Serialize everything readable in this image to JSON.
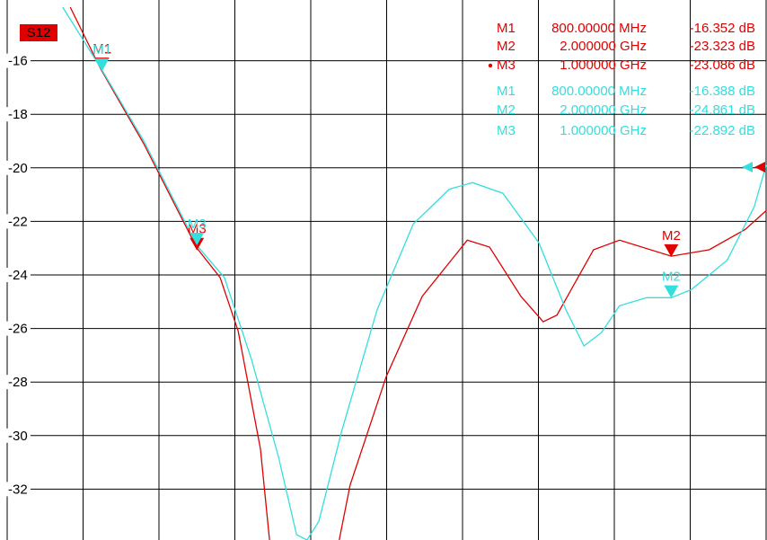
{
  "chart_data": {
    "type": "line",
    "badge": "S12",
    "xlim": [
      0.6,
      2.2
    ],
    "ylim": [
      -34,
      -14
    ],
    "yticks": [
      -16,
      -18,
      -20,
      -22,
      -24,
      -26,
      -28,
      -30,
      -32
    ],
    "grid": true,
    "series": [
      {
        "color": "#e00000",
        "x": [
          0.733,
          0.797,
          0.888,
          1.0,
          1.049,
          1.087,
          1.134,
          1.153,
          null,
          1.3,
          1.323,
          1.399,
          1.475,
          1.57,
          1.617,
          1.683,
          1.73,
          1.759,
          1.836,
          1.891,
          2.0,
          2.08,
          2.156,
          2.2
        ],
        "values": [
          -14,
          -16.3,
          -19.1,
          -23.0,
          -24.1,
          -26.1,
          -30.5,
          -33.9,
          null,
          -33.9,
          -31.85,
          -27.8,
          -24.8,
          -22.7,
          -22.96,
          -24.8,
          -25.75,
          -25.5,
          -23.06,
          -22.7,
          -23.3,
          -23.06,
          -22.3,
          -21.6
        ],
        "markers": [
          {
            "label": "M1",
            "x": 0.8,
            "y": -16.352,
            "freq": "800.00000 MHz",
            "value_label": "-16.352 dB"
          },
          {
            "label": "M2",
            "x": 2.0,
            "y": -23.323,
            "freq": "2.000000 GHz",
            "value_label": "-23.323 dB"
          },
          {
            "label": "M3",
            "x": 1.0,
            "y": -23.086,
            "freq": "1.000000 GHz",
            "value_label": "-23.086 dB",
            "active": true
          }
        ]
      },
      {
        "color": "#33dede",
        "x": [
          0.717,
          0.8,
          0.888,
          1.0,
          1.058,
          1.115,
          1.172,
          1.21,
          1.232,
          1.257,
          1.305,
          1.38,
          1.456,
          1.532,
          1.581,
          1.645,
          1.721,
          1.778,
          1.816,
          1.853,
          1.891,
          1.948,
          2.0,
          2.042,
          2.118,
          2.175,
          2.2
        ],
        "values": [
          -14,
          -16.35,
          -19.0,
          -22.9,
          -24.1,
          -27.15,
          -30.8,
          -33.7,
          -33.9,
          -33.2,
          -29.85,
          -25.3,
          -22.1,
          -20.8,
          -20.55,
          -20.95,
          -22.8,
          -25.3,
          -26.65,
          -26.15,
          -25.15,
          -24.85,
          -24.85,
          -24.55,
          -23.45,
          -21.45,
          -19.9
        ],
        "markers": [
          {
            "label": "M1",
            "x": 0.8,
            "y": -16.388,
            "freq": "800.00000 MHz",
            "value_label": "-16.388 dB"
          },
          {
            "label": "M2",
            "x": 2.0,
            "y": -24.861,
            "freq": "2.000000 GHz",
            "value_label": "-24.861 dB"
          },
          {
            "label": "M3",
            "x": 1.0,
            "y": -22.892,
            "freq": "1.000000 GHz",
            "value_label": "-22.892 dB"
          }
        ]
      }
    ]
  }
}
